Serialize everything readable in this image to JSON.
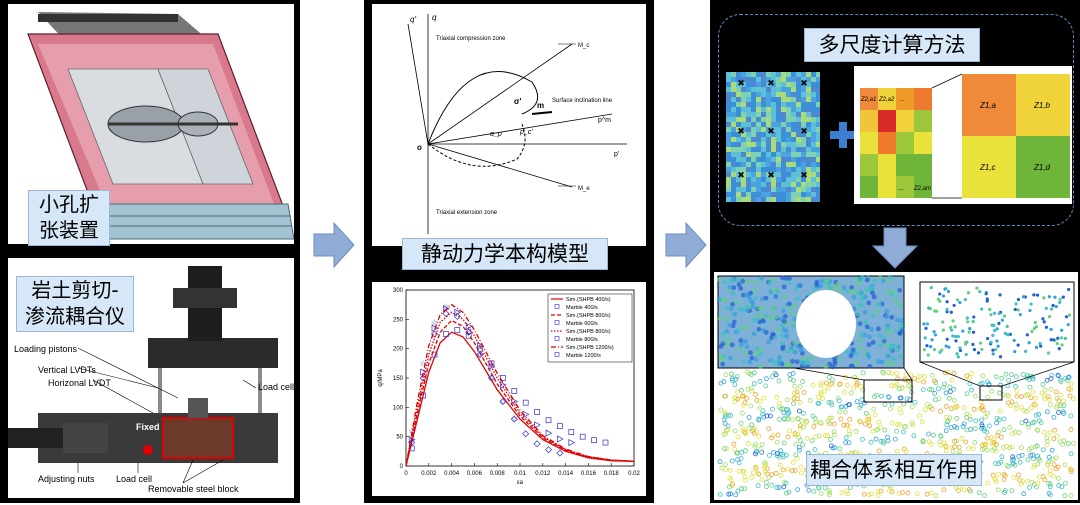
{
  "labels": {
    "small_hole": "小孔扩\n张装置",
    "small_hole_l1": "小孔扩",
    "small_hole_l2": "张装置",
    "rock_shear_l1": "岩土剪切-",
    "rock_shear_l2": "渗流耦合仪",
    "constitutive": "静动力学本构模型",
    "multiscale": "多尺度计算方法",
    "coupling": "耦合体系相互作用"
  },
  "apparatus": {
    "loading_pistons": "Loading pistons",
    "vertical_lvdts": "Vertical LVDTs",
    "horizontal_lvdt": "Horizonal LVDT",
    "load_cell_right": "Load cell",
    "fixed": "Fixed",
    "adjusting_nuts": "Adjusting nuts",
    "load_cell_bottom": "Load cell",
    "steel_block": "Removable steel block"
  },
  "constitutive_diagram": {
    "q_prime": "q'",
    "q": "q",
    "compression_zone": "Triaxial compression zone",
    "extension_zone": "Triaxial extension zone",
    "surface_line": "Surface inclination line",
    "mc": "M_c",
    "me": "M_e",
    "sigma": "σ'",
    "m": "m",
    "p_m": "p^m",
    "p_prime": "p'",
    "o": "o",
    "alpha": "α_p",
    "p_c": "p_c'"
  },
  "grid": {
    "z21": "Z2,a1",
    "z22": "Z2,a2",
    "dash": "..",
    "zdots": "...",
    "z2am": "Z2,am",
    "z1a": "Z1,a",
    "z1b": "Z1,b",
    "z1c": "Z1,c",
    "z1d": "Z1,d"
  },
  "chart_data": {
    "type": "line",
    "ylabel": "q/MPa",
    "xlabel": "εa",
    "xlim": [
      0,
      0.02
    ],
    "ylim": [
      0,
      300
    ],
    "xticks": [
      "0",
      "0.002",
      "0.004",
      "0.006",
      "0.008",
      "0.01",
      "0.012",
      "0.014",
      "0.016",
      "0.018",
      "0.02"
    ],
    "yticks": [
      "0",
      "50",
      "100",
      "150",
      "200",
      "250",
      "300"
    ],
    "legend_position": "top-right",
    "series": [
      {
        "name": "Sim.(SHPB 400/s)",
        "color": "#e00000",
        "style": "solid",
        "x": [
          0,
          0.001,
          0.002,
          0.003,
          0.004,
          0.005,
          0.006,
          0.008,
          0.01,
          0.012,
          0.014,
          0.016,
          0.018,
          0.02
        ],
        "y": [
          0,
          80,
          160,
          210,
          228,
          220,
          195,
          130,
          80,
          45,
          25,
          14,
          9,
          8
        ]
      },
      {
        "name": "Marble 400/s",
        "color": "#3030d0",
        "style": "square",
        "x": [
          0.0005,
          0.0015,
          0.0025,
          0.0035,
          0.0045,
          0.0055,
          0.0065,
          0.0075,
          0.0085,
          0.0095,
          0.0105,
          0.0115,
          0.0125,
          0.0135,
          0.0145,
          0.0155,
          0.0165,
          0.0175
        ],
        "y": [
          30,
          120,
          190,
          225,
          232,
          222,
          200,
          175,
          150,
          128,
          108,
          92,
          78,
          68,
          58,
          50,
          44,
          40
        ]
      },
      {
        "name": "Sim.(SHPB 800/s)",
        "color": "#e00000",
        "style": "dashed",
        "x": [
          0,
          0.001,
          0.002,
          0.003,
          0.004,
          0.005,
          0.006,
          0.008,
          0.01,
          0.012,
          0.014,
          0.016,
          0.018,
          0.02
        ],
        "y": [
          0,
          90,
          175,
          228,
          248,
          238,
          210,
          140,
          85,
          48,
          27,
          15,
          10,
          8
        ]
      },
      {
        "name": "Marble  600/s",
        "color": "#3030d0",
        "style": "diamond",
        "x": [
          0.0005,
          0.0015,
          0.0025,
          0.0035,
          0.0045,
          0.0055,
          0.0065,
          0.0075,
          0.0085,
          0.0095,
          0.0105,
          0.0115,
          0.0125,
          0.0135
        ],
        "y": [
          40,
          150,
          225,
          260,
          255,
          228,
          190,
          150,
          110,
          80,
          55,
          38,
          28,
          22
        ]
      },
      {
        "name": "Sim.(SHPB 800/s)",
        "color": "#e00000",
        "style": "dotted",
        "x": [
          0,
          0.001,
          0.002,
          0.003,
          0.004,
          0.005,
          0.006,
          0.008,
          0.01,
          0.012,
          0.014,
          0.016,
          0.018,
          0.02
        ],
        "y": [
          0,
          100,
          190,
          245,
          262,
          250,
          222,
          150,
          90,
          50,
          28,
          16,
          10,
          8
        ]
      },
      {
        "name": "Marble  800/s",
        "color": "#3030d0",
        "style": "triangle",
        "x": [
          0.0005,
          0.0015,
          0.0025,
          0.0035,
          0.0045,
          0.0055,
          0.0065,
          0.0075,
          0.0085,
          0.0095,
          0.0105,
          0.0115,
          0.0125,
          0.0135,
          0.0145
        ],
        "y": [
          45,
          160,
          235,
          268,
          262,
          238,
          205,
          170,
          138,
          110,
          88,
          70,
          56,
          46,
          40
        ]
      },
      {
        "name": "Sim.(SHPB 1200/s)",
        "color": "#e00000",
        "style": "dashdot",
        "x": [
          0,
          0.001,
          0.002,
          0.003,
          0.004,
          0.005,
          0.006,
          0.008,
          0.01,
          0.012,
          0.014,
          0.016,
          0.018,
          0.02
        ],
        "y": [
          0,
          110,
          205,
          258,
          275,
          262,
          232,
          158,
          95,
          52,
          29,
          16,
          10,
          8
        ]
      },
      {
        "name": "Marble 1200/s",
        "color": "#3030d0",
        "style": "star",
        "x": [
          0.0005,
          0.0015,
          0.0025,
          0.0035,
          0.0045,
          0.0055,
          0.0065,
          0.0075,
          0.0085,
          0.0095
        ],
        "y": [
          60,
          175,
          245,
          272,
          262,
          232,
          190,
          150,
          110,
          80
        ]
      }
    ]
  }
}
